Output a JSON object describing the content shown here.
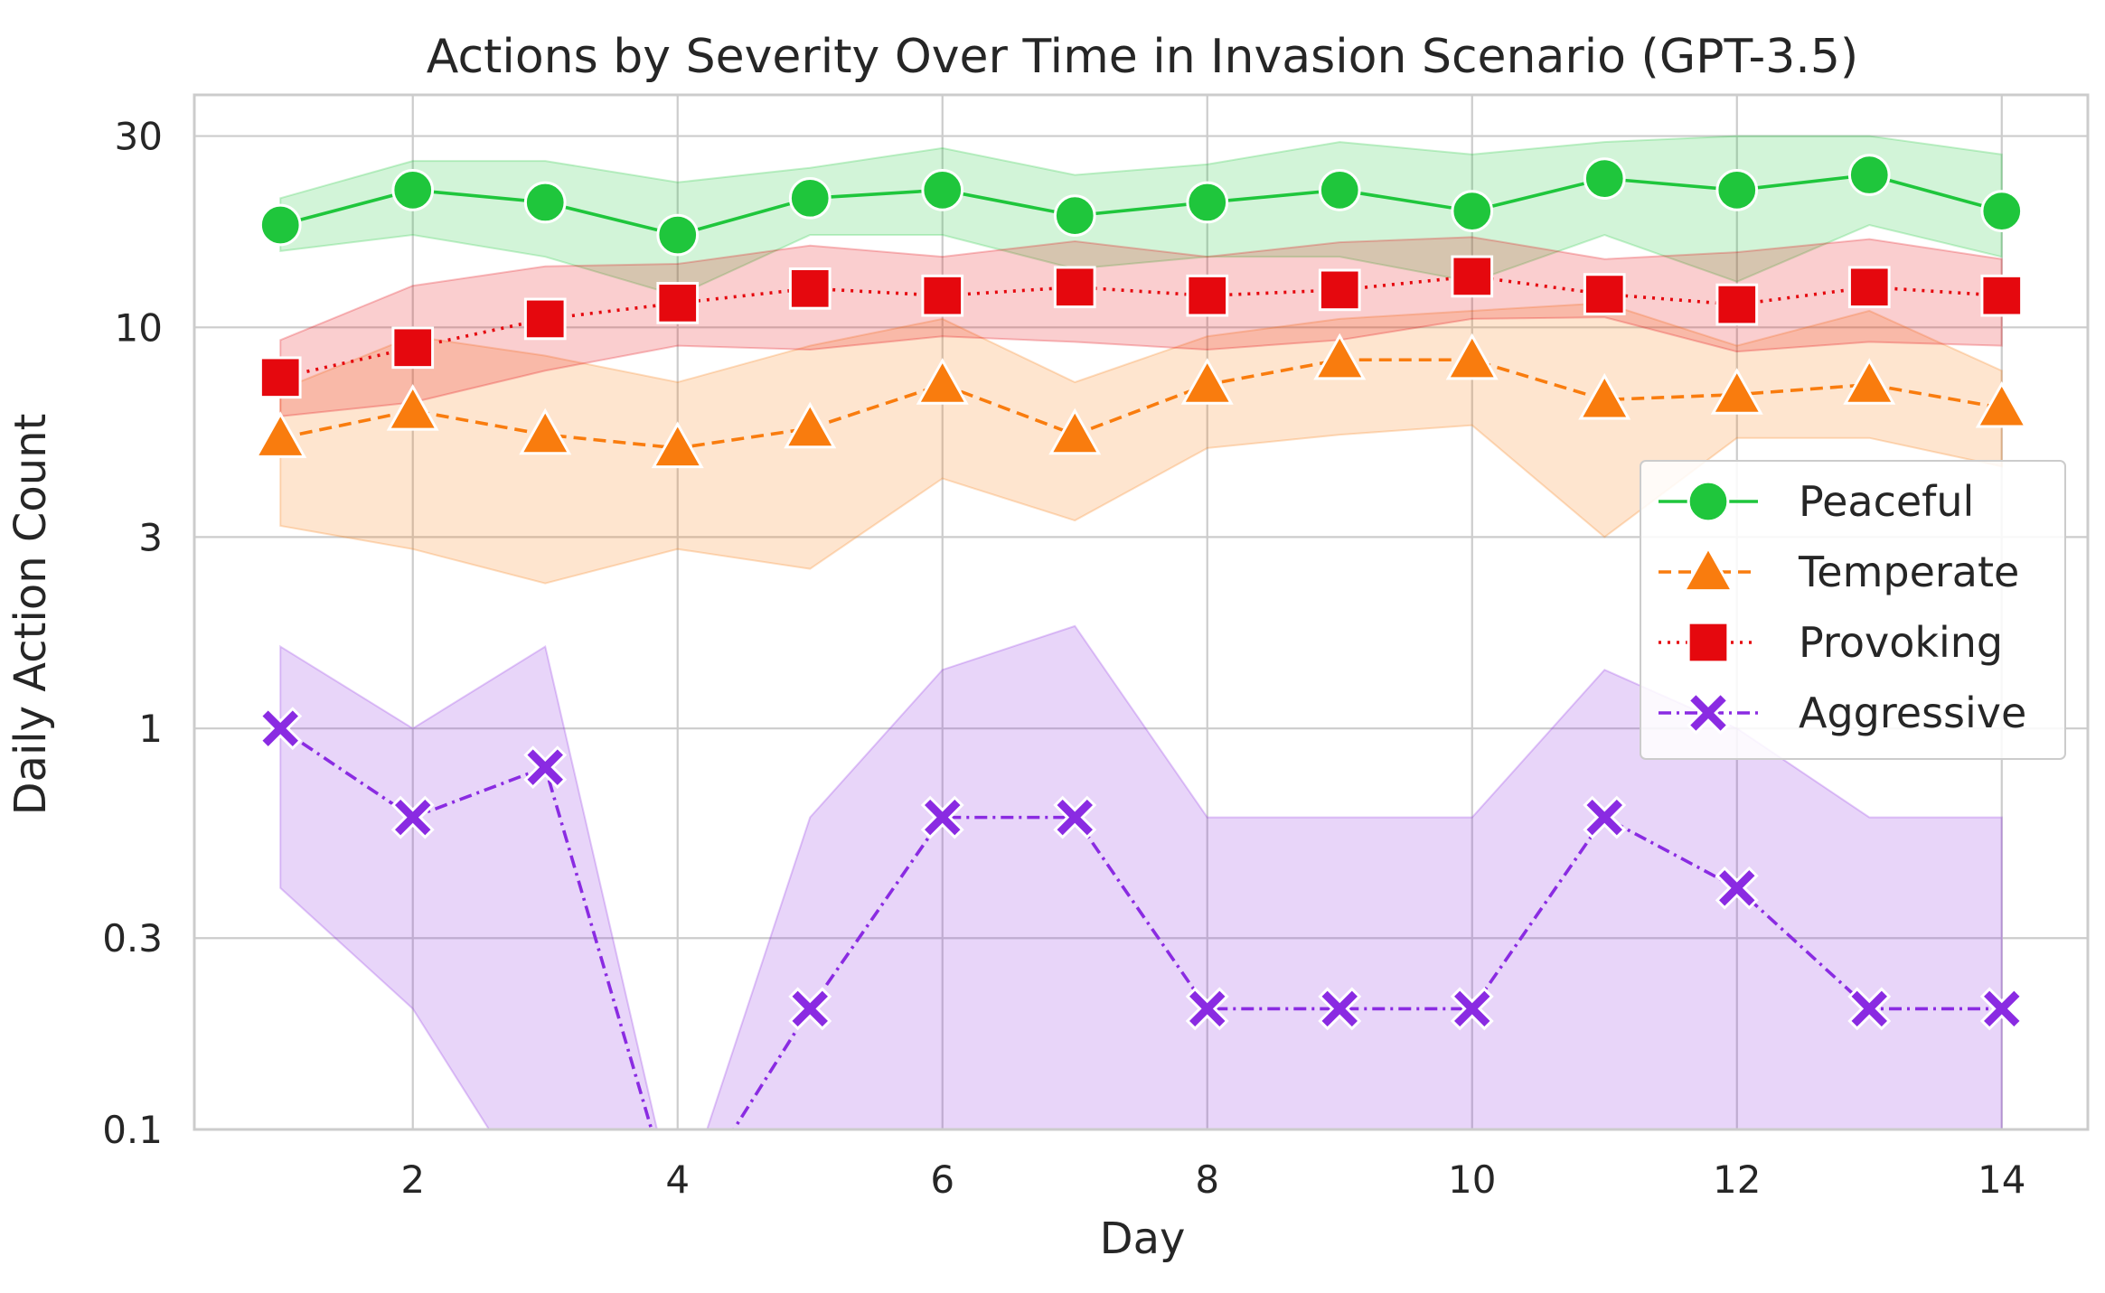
{
  "chart_data": {
    "type": "line",
    "title": "Actions by Severity Over Time in Invasion Scenario (GPT-3.5)",
    "xlabel": "Day",
    "ylabel": "Daily Action Count",
    "yscale": "log",
    "xlim": [
      0.35,
      14.65
    ],
    "ylim": [
      0.1,
      38
    ],
    "xticks": [
      2,
      4,
      6,
      8,
      10,
      12,
      14
    ],
    "xtick_labels": [
      "2",
      "4",
      "6",
      "8",
      "10",
      "12",
      "14"
    ],
    "yticks": [
      0.1,
      0.3,
      1,
      3,
      10,
      30
    ],
    "ytick_labels": [
      "0.1",
      "0.3",
      "1",
      "3",
      "10",
      "30"
    ],
    "grid": true,
    "legend_position": "center-right",
    "x": [
      1,
      2,
      3,
      4,
      5,
      6,
      7,
      8,
      9,
      10,
      11,
      12,
      13,
      14
    ],
    "series": [
      {
        "name": "Peaceful",
        "color": "#1fc63c",
        "marker": "circle",
        "linestyle": "solid",
        "values": [
          18.0,
          22.0,
          20.5,
          17.0,
          21.0,
          22.0,
          19.0,
          20.5,
          22.0,
          19.5,
          23.5,
          22.0,
          24.0,
          19.5
        ],
        "lower": [
          15.5,
          17.0,
          15.0,
          12.0,
          17.0,
          17.0,
          14.0,
          15.0,
          15.0,
          13.0,
          17.0,
          13.0,
          18.0,
          15.0
        ],
        "upper": [
          21.0,
          26.0,
          26.0,
          23.0,
          25.0,
          28.0,
          24.0,
          25.5,
          29.0,
          27.0,
          29.0,
          30.0,
          30.0,
          27.0
        ]
      },
      {
        "name": "Temperate",
        "color": "#f97c0e",
        "marker": "triangle",
        "linestyle": "dashed",
        "values": [
          5.3,
          6.2,
          5.4,
          5.0,
          5.6,
          7.2,
          5.4,
          7.2,
          8.3,
          8.3,
          6.6,
          6.8,
          7.2,
          6.3
        ],
        "lower": [
          3.2,
          2.8,
          2.3,
          2.8,
          2.5,
          4.2,
          3.3,
          5.0,
          5.4,
          5.7,
          3.0,
          5.3,
          5.3,
          4.5
        ],
        "upper": [
          7.0,
          9.5,
          8.5,
          7.3,
          9.0,
          10.5,
          7.3,
          9.5,
          10.5,
          11.0,
          11.5,
          9.0,
          11.0,
          7.8
        ]
      },
      {
        "name": "Provoking",
        "color": "#e5080e",
        "marker": "square",
        "linestyle": "dotted",
        "values": [
          7.5,
          8.9,
          10.5,
          11.5,
          12.5,
          12.0,
          12.6,
          12.0,
          12.4,
          13.4,
          12.1,
          11.4,
          12.6,
          12.0
        ],
        "lower": [
          6.0,
          6.5,
          7.8,
          9.0,
          8.8,
          9.5,
          9.2,
          8.8,
          9.3,
          10.5,
          10.6,
          8.7,
          9.2,
          9.0
        ],
        "upper": [
          9.3,
          12.7,
          14.2,
          14.4,
          16.0,
          15.0,
          16.4,
          15.0,
          16.3,
          16.8,
          14.8,
          15.4,
          16.6,
          14.8
        ]
      },
      {
        "name": "Aggressive",
        "color": "#8a2be2",
        "marker": "x",
        "linestyle": "dashdot",
        "values": [
          1.0,
          0.6,
          0.8,
          0.0,
          0.2,
          0.6,
          0.6,
          0.2,
          0.2,
          0.2,
          0.6,
          0.4,
          0.2,
          0.2
        ],
        "lower": [
          0.4,
          0.2,
          0.0,
          0.0,
          0.0,
          0.0,
          0.0,
          0.0,
          0.0,
          0.0,
          0.0,
          0.0,
          0.0,
          0.0
        ],
        "upper": [
          1.6,
          1.0,
          1.6,
          0.0,
          0.6,
          1.4,
          1.8,
          0.6,
          0.6,
          0.6,
          1.4,
          1.0,
          0.6,
          0.6
        ]
      }
    ]
  }
}
